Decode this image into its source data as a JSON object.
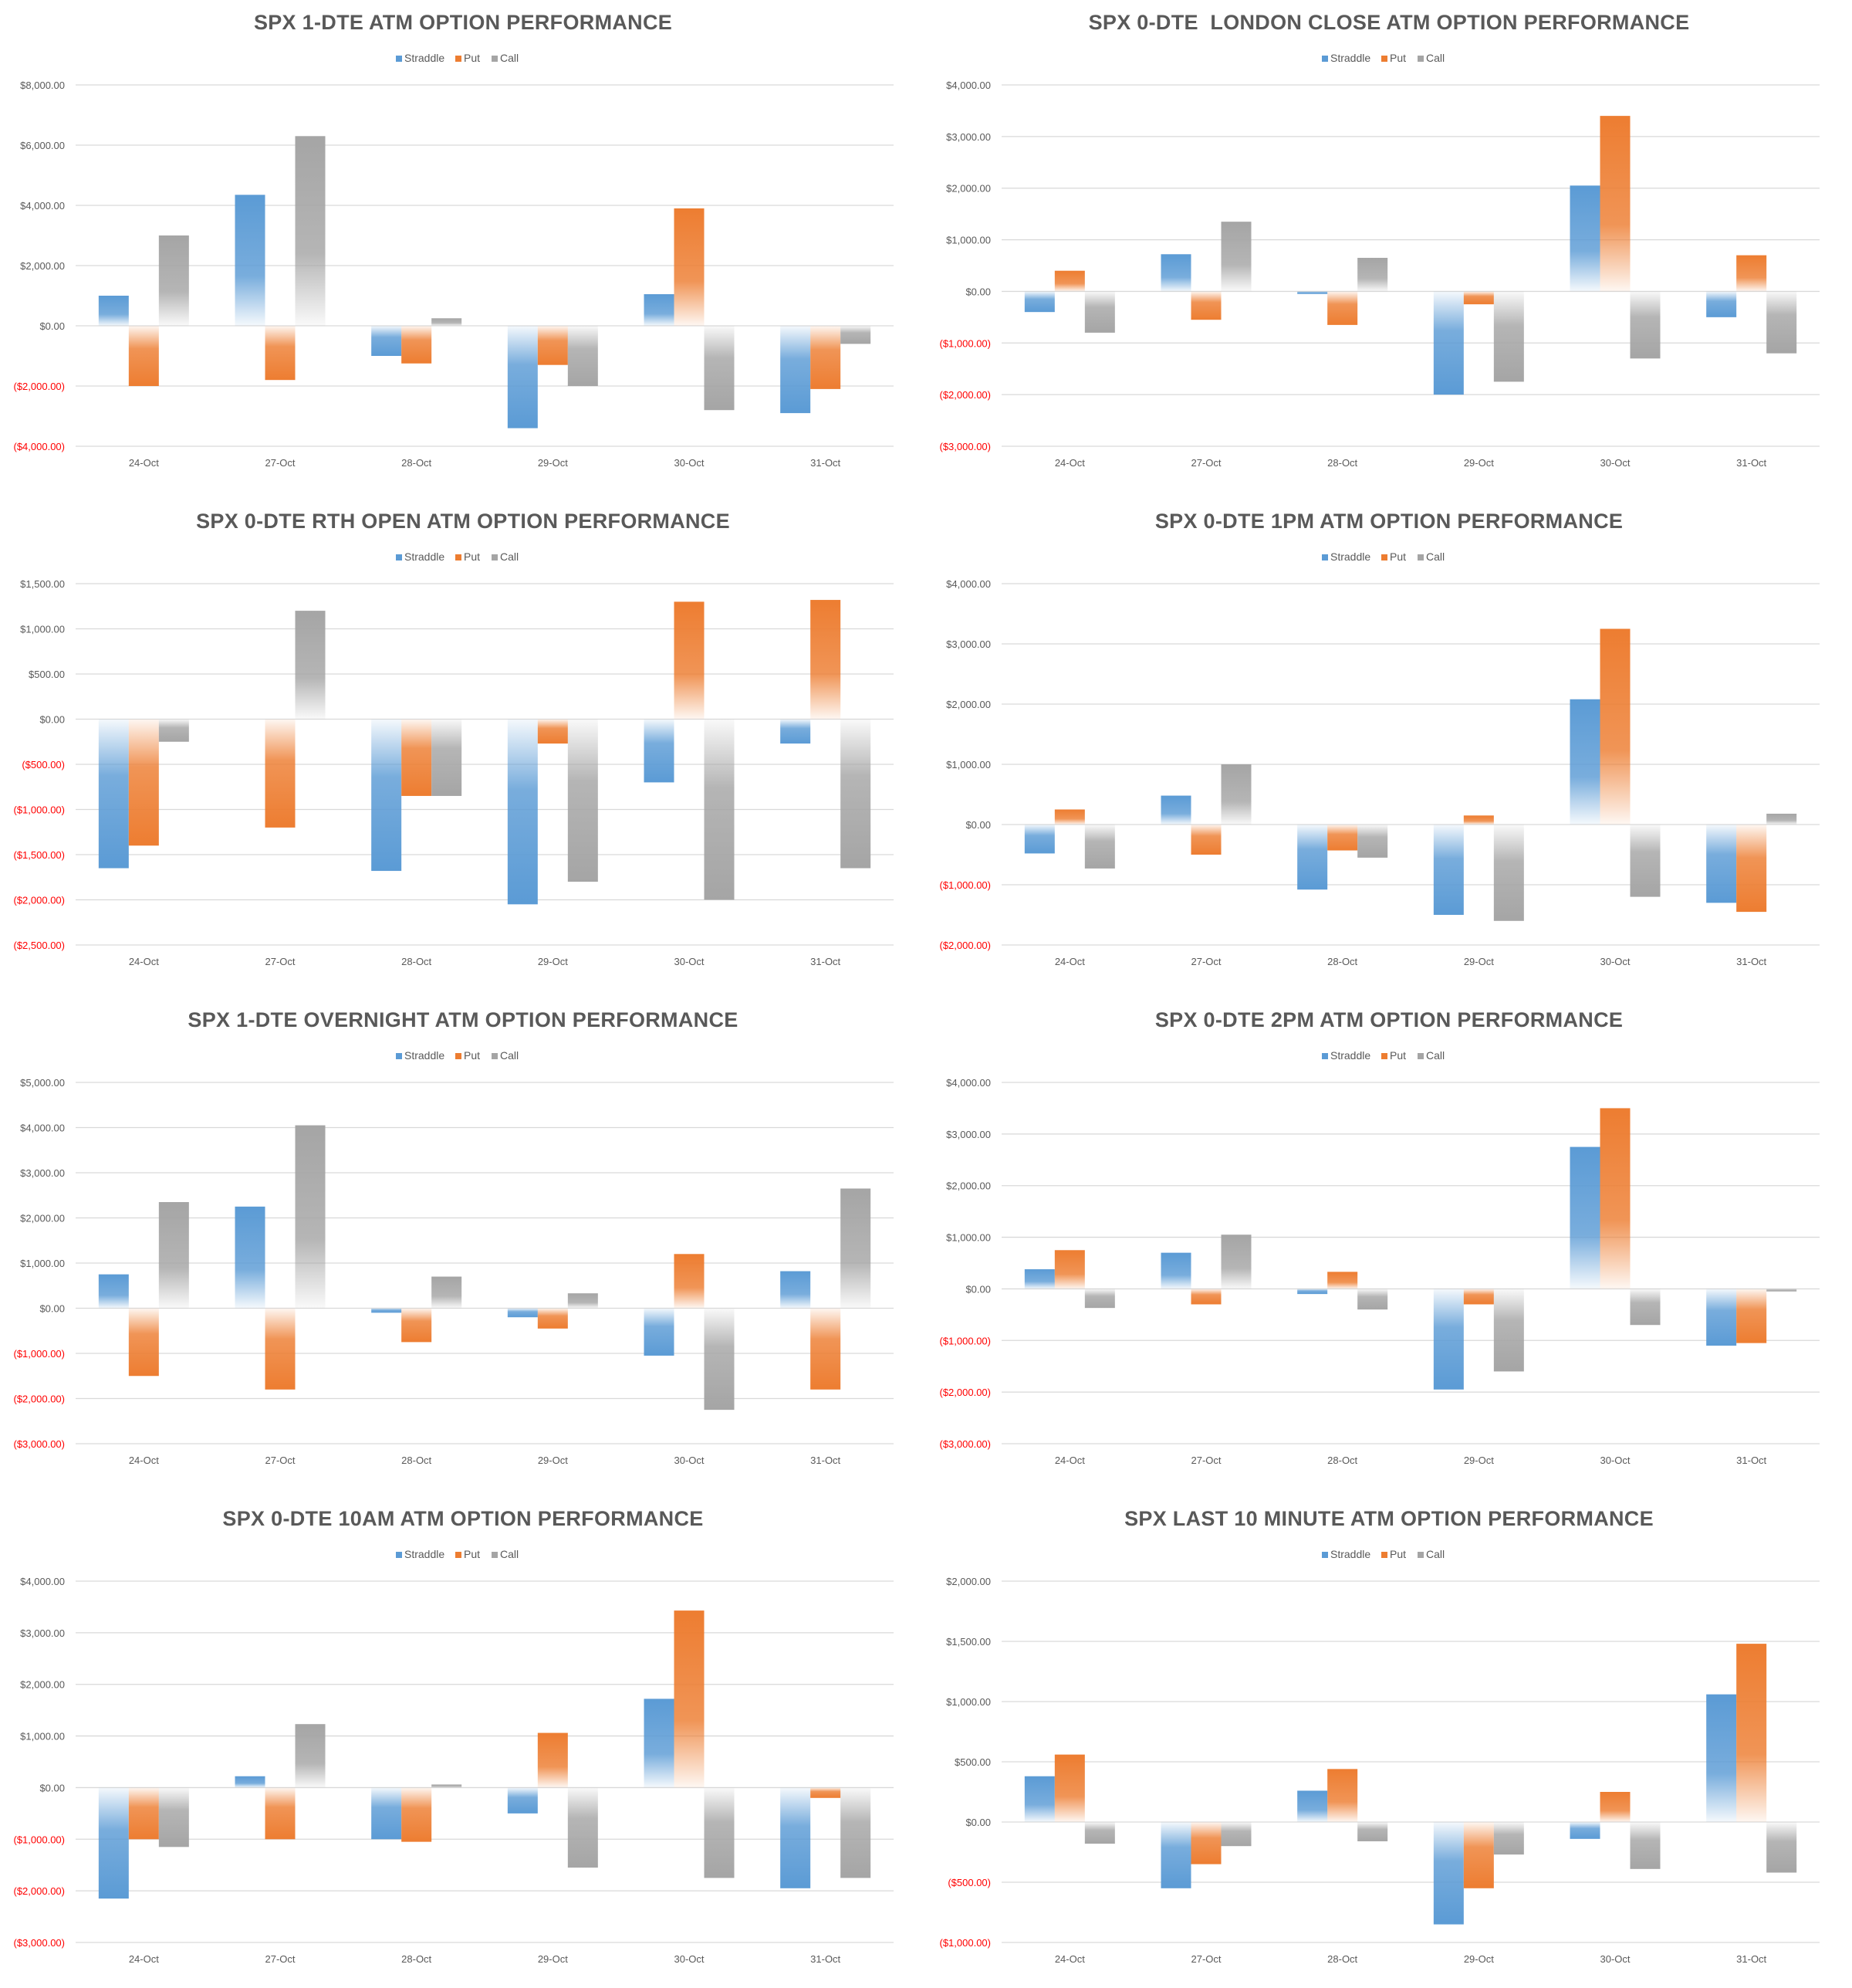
{
  "legend": {
    "straddle": "Straddle",
    "put": "Put",
    "call": "Call"
  },
  "colors": {
    "straddle": "#5B9BD5",
    "put": "#ED7D31",
    "call": "#A5A5A5",
    "negative_label": "#FF0000",
    "axis_label": "#595959",
    "gridline": "#D9D9D9",
    "title": "#595959"
  },
  "chart_data": [
    {
      "type": "bar",
      "title": "SPX 1-DTE ATM OPTION PERFORMANCE",
      "categories": [
        "24-Oct",
        "27-Oct",
        "28-Oct",
        "29-Oct",
        "30-Oct",
        "31-Oct"
      ],
      "ylim": [
        -4000,
        8000
      ],
      "yticks": [
        8000,
        6000,
        4000,
        2000,
        0,
        -2000,
        -4000
      ],
      "ytick_labels": [
        "$8,000.00",
        "$6,000.00",
        "$4,000.00",
        "$2,000.00",
        "$0.00",
        "($2,000.00)",
        "($4,000.00)"
      ],
      "series": [
        {
          "name": "Straddle",
          "values": [
            1000,
            4350,
            -1000,
            -3400,
            1050,
            -2900
          ]
        },
        {
          "name": "Put",
          "values": [
            -2000,
            -1800,
            -1250,
            -1300,
            3900,
            -2100
          ]
        },
        {
          "name": "Call",
          "values": [
            3000,
            6300,
            250,
            -2000,
            -2800,
            -600
          ]
        }
      ]
    },
    {
      "type": "bar",
      "title": "SPX 0-DTE  LONDON CLOSE ATM OPTION PERFORMANCE",
      "categories": [
        "24-Oct",
        "27-Oct",
        "28-Oct",
        "29-Oct",
        "30-Oct",
        "31-Oct"
      ],
      "ylim": [
        -3000,
        4000
      ],
      "yticks": [
        4000,
        3000,
        2000,
        1000,
        0,
        -1000,
        -2000,
        -3000
      ],
      "ytick_labels": [
        "$4,000.00",
        "$3,000.00",
        "$2,000.00",
        "$1,000.00",
        "$0.00",
        "($1,000.00)",
        "($2,000.00)",
        "($3,000.00)"
      ],
      "series": [
        {
          "name": "Straddle",
          "values": [
            -400,
            720,
            -50,
            -2000,
            2050,
            -500
          ]
        },
        {
          "name": "Put",
          "values": [
            400,
            -550,
            -650,
            -250,
            3400,
            700
          ]
        },
        {
          "name": "Call",
          "values": [
            -800,
            1350,
            650,
            -1750,
            -1300,
            -1200
          ]
        }
      ]
    },
    {
      "type": "bar",
      "title": "SPX 0-DTE RTH OPEN ATM OPTION PERFORMANCE",
      "categories": [
        "24-Oct",
        "27-Oct",
        "28-Oct",
        "29-Oct",
        "30-Oct",
        "31-Oct"
      ],
      "ylim": [
        -2500,
        1500
      ],
      "yticks": [
        1500,
        1000,
        500,
        0,
        -500,
        -1000,
        -1500,
        -2000,
        -2500
      ],
      "ytick_labels": [
        "$1,500.00",
        "$1,000.00",
        "$500.00",
        "$0.00",
        "($500.00)",
        "($1,000.00)",
        "($1,500.00)",
        "($2,000.00)",
        "($2,500.00)"
      ],
      "series": [
        {
          "name": "Straddle",
          "values": [
            -1650,
            0,
            -1680,
            -2050,
            -700,
            -270
          ]
        },
        {
          "name": "Put",
          "values": [
            -1400,
            -1200,
            -850,
            -270,
            1300,
            1320
          ]
        },
        {
          "name": "Call",
          "values": [
            -250,
            1200,
            -850,
            -1800,
            -2000,
            -1650
          ]
        }
      ]
    },
    {
      "type": "bar",
      "title": "SPX 0-DTE 1PM ATM OPTION PERFORMANCE",
      "categories": [
        "24-Oct",
        "27-Oct",
        "28-Oct",
        "29-Oct",
        "30-Oct",
        "31-Oct"
      ],
      "ylim": [
        -2000,
        4000
      ],
      "yticks": [
        4000,
        3000,
        2000,
        1000,
        0,
        -1000,
        -2000
      ],
      "ytick_labels": [
        "$4,000.00",
        "$3,000.00",
        "$2,000.00",
        "$1,000.00",
        "$0.00",
        "($1,000.00)",
        "($2,000.00)"
      ],
      "series": [
        {
          "name": "Straddle",
          "values": [
            -480,
            480,
            -1080,
            -1500,
            2080,
            -1300
          ]
        },
        {
          "name": "Put",
          "values": [
            250,
            -500,
            -430,
            150,
            3250,
            -1450
          ]
        },
        {
          "name": "Call",
          "values": [
            -730,
            1000,
            -550,
            -1600,
            -1200,
            180
          ]
        }
      ]
    },
    {
      "type": "bar",
      "title": "SPX 1-DTE OVERNIGHT ATM OPTION PERFORMANCE",
      "categories": [
        "24-Oct",
        "27-Oct",
        "28-Oct",
        "29-Oct",
        "30-Oct",
        "31-Oct"
      ],
      "ylim": [
        -3000,
        5000
      ],
      "yticks": [
        5000,
        4000,
        3000,
        2000,
        1000,
        0,
        -1000,
        -2000,
        -3000
      ],
      "ytick_labels": [
        "$5,000.00",
        "$4,000.00",
        "$3,000.00",
        "$2,000.00",
        "$1,000.00",
        "$0.00",
        "($1,000.00)",
        "($2,000.00)",
        "($3,000.00)"
      ],
      "series": [
        {
          "name": "Straddle",
          "values": [
            750,
            2250,
            -100,
            -200,
            -1050,
            820
          ]
        },
        {
          "name": "Put",
          "values": [
            -1500,
            -1800,
            -750,
            -450,
            1200,
            -1800
          ]
        },
        {
          "name": "Call",
          "values": [
            2350,
            4050,
            700,
            330,
            -2250,
            2650
          ]
        }
      ]
    },
    {
      "type": "bar",
      "title": "SPX 0-DTE 2PM ATM OPTION PERFORMANCE",
      "categories": [
        "24-Oct",
        "27-Oct",
        "28-Oct",
        "29-Oct",
        "30-Oct",
        "31-Oct"
      ],
      "ylim": [
        -3000,
        4000
      ],
      "yticks": [
        4000,
        3000,
        2000,
        1000,
        0,
        -1000,
        -2000,
        -3000
      ],
      "ytick_labels": [
        "$4,000.00",
        "$3,000.00",
        "$2,000.00",
        "$1,000.00",
        "$0.00",
        "($1,000.00)",
        "($2,000.00)",
        "($3,000.00)"
      ],
      "series": [
        {
          "name": "Straddle",
          "values": [
            380,
            700,
            -100,
            -1950,
            2750,
            -1100
          ]
        },
        {
          "name": "Put",
          "values": [
            750,
            -300,
            330,
            -300,
            3500,
            -1050
          ]
        },
        {
          "name": "Call",
          "values": [
            -370,
            1050,
            -400,
            -1600,
            -700,
            -50
          ]
        }
      ]
    },
    {
      "type": "bar",
      "title": "SPX 0-DTE 10AM ATM OPTION PERFORMANCE",
      "categories": [
        "24-Oct",
        "27-Oct",
        "28-Oct",
        "29-Oct",
        "30-Oct",
        "31-Oct"
      ],
      "ylim": [
        -3000,
        4000
      ],
      "yticks": [
        4000,
        3000,
        2000,
        1000,
        0,
        -1000,
        -2000,
        -3000
      ],
      "ytick_labels": [
        "$4,000.00",
        "$3,000.00",
        "$2,000.00",
        "$1,000.00",
        "$0.00",
        "($1,000.00)",
        "($2,000.00)",
        "($3,000.00)"
      ],
      "series": [
        {
          "name": "Straddle",
          "values": [
            -2150,
            220,
            -1000,
            -500,
            1720,
            -1950
          ]
        },
        {
          "name": "Put",
          "values": [
            -1000,
            -1000,
            -1050,
            1060,
            3430,
            -200
          ]
        },
        {
          "name": "Call",
          "values": [
            -1150,
            1230,
            60,
            -1550,
            -1750,
            -1750
          ]
        }
      ]
    },
    {
      "type": "bar",
      "title": "SPX LAST 10 MINUTE ATM OPTION PERFORMANCE",
      "categories": [
        "24-Oct",
        "27-Oct",
        "28-Oct",
        "29-Oct",
        "30-Oct",
        "31-Oct"
      ],
      "ylim": [
        -1000,
        2000
      ],
      "yticks": [
        2000,
        1500,
        1000,
        500,
        0,
        -500,
        -1000
      ],
      "ytick_labels": [
        "$2,000.00",
        "$1,500.00",
        "$1,000.00",
        "$500.00",
        "$0.00",
        "($500.00)",
        "($1,000.00)"
      ],
      "series": [
        {
          "name": "Straddle",
          "values": [
            380,
            -550,
            260,
            -850,
            -140,
            1060
          ]
        },
        {
          "name": "Put",
          "values": [
            560,
            -350,
            440,
            -550,
            250,
            1480
          ]
        },
        {
          "name": "Call",
          "values": [
            -180,
            -200,
            -160,
            -270,
            -390,
            -420
          ]
        }
      ]
    }
  ]
}
